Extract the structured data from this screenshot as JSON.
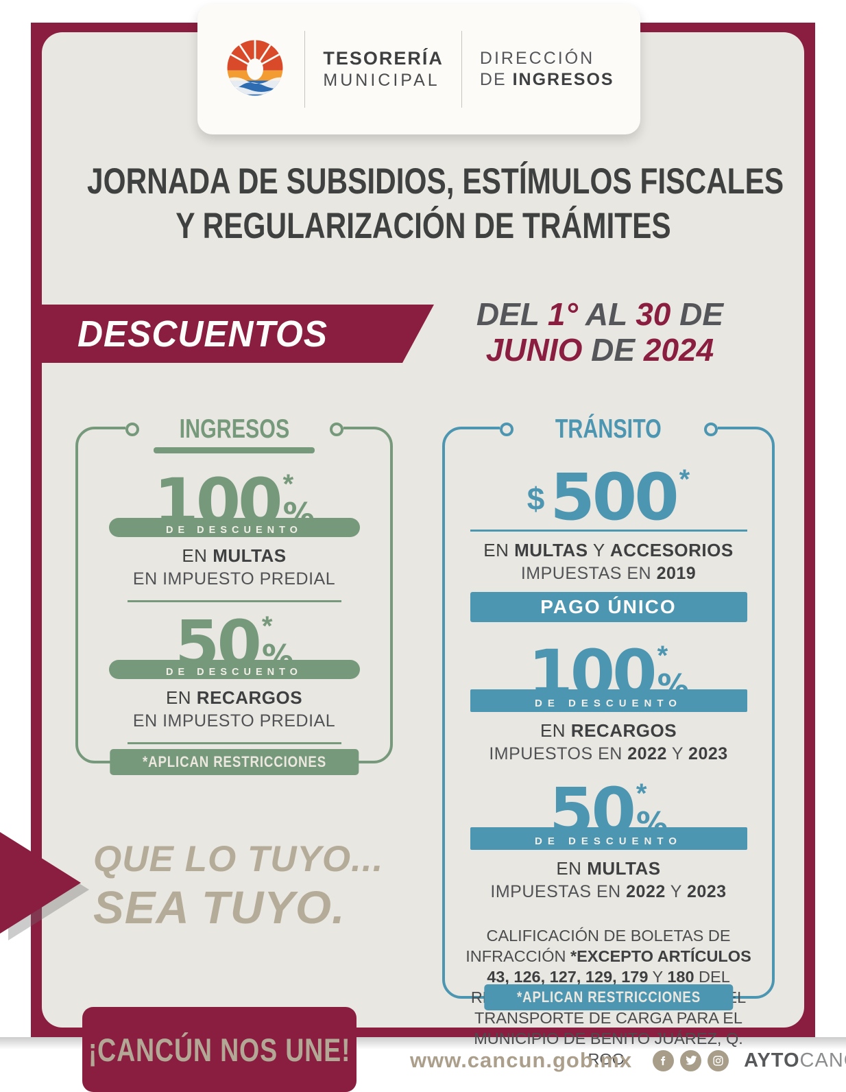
{
  "colors": {
    "maroon": "#8a1e41",
    "green": "#76997b",
    "blue": "#4d96b2",
    "card_bg": "#e9e7e1",
    "taupe": "#b5ab99",
    "text_dark": "#3e3f40",
    "text_gray": "#55565a"
  },
  "header": {
    "logo_icon": "cancun-sun-wave-logo",
    "org1": {
      "l1": "TESORERÍA",
      "l2": "MUNICIPAL"
    },
    "org2": {
      "l1": "DIRECCIÓN",
      "l2": [
        {
          "t": "DE "
        },
        {
          "t": "INGRESOS",
          "b": true
        }
      ]
    }
  },
  "title": {
    "line1": "JORNADA DE SUBSIDIOS, ESTÍMULOS FISCALES",
    "line2": "Y REGULARIZACIÓN DE TRÁMITES"
  },
  "ribbon": {
    "label": "DESCUENTOS"
  },
  "date": {
    "line1": [
      {
        "t": "DEL "
      },
      {
        "t": "1°",
        "b": true
      },
      {
        "t": " AL "
      },
      {
        "t": "30",
        "b": true
      },
      {
        "t": " DE"
      }
    ],
    "line2": [
      {
        "t": "JUNIO",
        "b": true
      },
      {
        "t": " DE "
      },
      {
        "t": "2024",
        "b": true
      }
    ]
  },
  "ingresos": {
    "title": "INGRESOS",
    "block1": {
      "value": "100",
      "note": "*",
      "unit": "%",
      "bar": "DE DESCUENTO",
      "line1": [
        {
          "t": "EN "
        },
        {
          "t": "MULTAS",
          "b": true
        }
      ],
      "line2": "EN IMPUESTO PREDIAL"
    },
    "block2": {
      "value": "50",
      "note": "*",
      "unit": "%",
      "bar": "DE DESCUENTO",
      "line1": [
        {
          "t": "EN "
        },
        {
          "t": "RECARGOS",
          "b": true
        }
      ],
      "line2": "EN IMPUESTO PREDIAL"
    },
    "restrictions": "*APLICAN RESTRICCIONES"
  },
  "transito": {
    "title": "TRÁNSITO",
    "amount": {
      "currency": "$",
      "value": "500",
      "note": "*",
      "line1": [
        {
          "t": "EN "
        },
        {
          "t": "MULTAS",
          "b": true
        },
        {
          "t": " Y "
        },
        {
          "t": "ACCESORIOS",
          "b": true
        }
      ],
      "line2": [
        {
          "t": "IMPUESTAS EN "
        },
        {
          "t": "2019",
          "b": true
        }
      ],
      "pago": "PAGO ÚNICO"
    },
    "block1": {
      "value": "100",
      "note": "*",
      "unit": "%",
      "bar": "DE DESCUENTO",
      "line1": [
        {
          "t": "EN "
        },
        {
          "t": "RECARGOS",
          "b": true
        }
      ],
      "line2": [
        {
          "t": "IMPUESTOS EN "
        },
        {
          "t": "2022",
          "b": true
        },
        {
          "t": " Y "
        },
        {
          "t": "2023",
          "b": true
        }
      ]
    },
    "block2": {
      "value": "50",
      "note": "*",
      "unit": "%",
      "bar": "DE DESCUENTO",
      "line1": [
        {
          "t": "EN "
        },
        {
          "t": "MULTAS",
          "b": true
        }
      ],
      "line2": [
        {
          "t": "IMPUESTAS EN "
        },
        {
          "t": "2022",
          "b": true
        },
        {
          "t": " Y "
        },
        {
          "t": "2023",
          "b": true
        }
      ]
    },
    "note": [
      {
        "t": "CALIFICACIÓN DE BOLETAS DE INFRACCIÓN "
      },
      {
        "t": "*EXCEPTO ARTÍCULOS  43, 126, 127, 129, 179",
        "b": true
      },
      {
        "t": " Y "
      },
      {
        "t": "180",
        "b": true
      },
      {
        "t": " DEL REGLAMENTO DE TRÁNSITO Y DEL TRANSPORTE DE CARGA  PARA EL MUNICIPIO DE BENITO JUÁREZ, Q. ROO."
      }
    ],
    "restrictions": "*APLICAN RESTRICCIONES"
  },
  "tagline": {
    "line1": "QUE LO TUYO...",
    "line2": "SEA TUYO."
  },
  "footer": {
    "slogan": "¡CANCÚN NOS UNE!",
    "website": "www.cancun.gob.mx",
    "social_icons": [
      "facebook-icon",
      "twitter-icon",
      "instagram-icon"
    ],
    "handle": [
      {
        "t": "AYTO",
        "b": true
      },
      {
        "t": "CANCUN"
      }
    ]
  }
}
